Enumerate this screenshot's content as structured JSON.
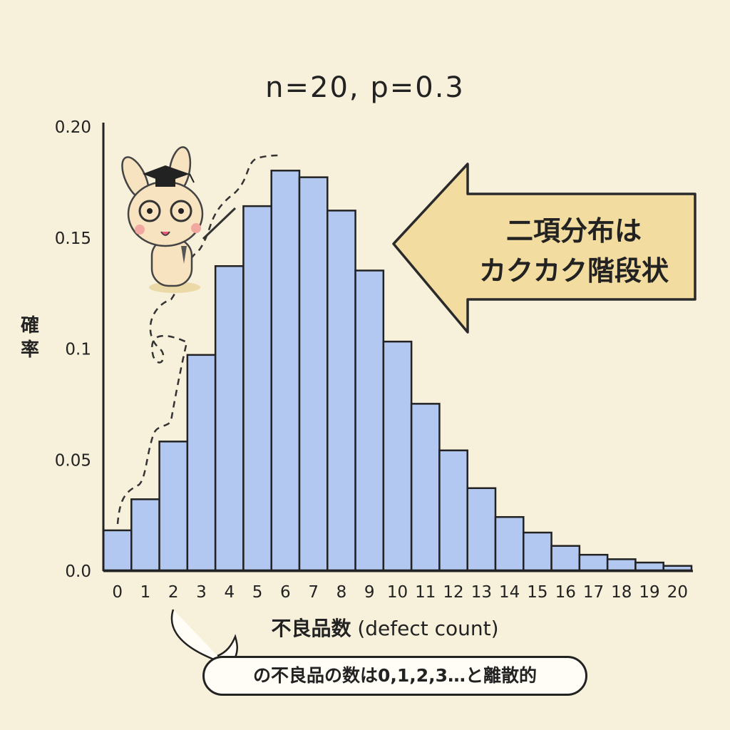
{
  "chart_data": {
    "type": "bar",
    "title": "n=20, p=0.3",
    "xlabel": "不良品数 (defect count)",
    "xlabel_jp": "不良品数",
    "xlabel_en": "(defect count)",
    "ylabel": "確率",
    "ylim": [
      0,
      0.2
    ],
    "yticks": [
      "0.0",
      "0.05",
      "0.1",
      "0.15",
      "0.20"
    ],
    "ytick_values": [
      0,
      0.05,
      0.1,
      0.15,
      0.2
    ],
    "categories": [
      "0",
      "1",
      "2",
      "3",
      "4",
      "5",
      "6",
      "7",
      "8",
      "9",
      "10",
      "11",
      "12",
      "13",
      "14",
      "15",
      "16",
      "17",
      "18",
      "19",
      "20"
    ],
    "values": [
      0.018,
      0.032,
      0.058,
      0.097,
      0.137,
      0.164,
      0.18,
      0.177,
      0.162,
      0.135,
      0.103,
      0.075,
      0.054,
      0.037,
      0.024,
      0.017,
      0.011,
      0.007,
      0.005,
      0.0035,
      0.002
    ],
    "grid": false,
    "bar_color": "#b3c8f0"
  },
  "annotations": {
    "callout_line1": "二項分布は",
    "callout_line2": "カクカク階段状",
    "bubble": "の不良品の数は0,1,2,3…と離散的"
  }
}
